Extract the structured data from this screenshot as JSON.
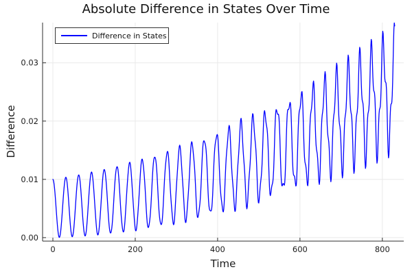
{
  "chart_data": {
    "type": "line",
    "title": "Absolute Difference in States Over Time",
    "xlabel": "Time",
    "ylabel": "Difference",
    "legend": {
      "position": "top-left",
      "entries": [
        {
          "label": "Difference in States",
          "color": "#0000ff"
        }
      ]
    },
    "axes": {
      "xlim": [
        -25,
        852
      ],
      "ylim": [
        -0.0006,
        0.0369
      ],
      "xticks": [
        0,
        200,
        400,
        600,
        800
      ],
      "xtick_labels": [
        "0",
        "200",
        "400",
        "600",
        "800"
      ],
      "yticks": [
        0,
        0.01,
        0.02,
        0.03
      ],
      "ytick_labels": [
        "0.00",
        "0.01",
        "0.02",
        "0.03"
      ],
      "grid": true
    },
    "series": [
      {
        "name": "Difference in States",
        "color": "#0000ff",
        "line_width": 1.3,
        "t_start": 0,
        "t_end": 830,
        "t_step": 1,
        "oscillation_period_time_units": 30,
        "model": {
          "description": "y(t)=max(0, mid + amp*cos(2*pi*(a*t+b*t^2)) + rip*sin(2*pi*t/ripple_period + ripple_phase)); mid=c0+c1*t+c2*t^2; amp=c0+c1*t; rip=c2*t^2",
          "mid": {
            "c0": 0.005,
            "c1": 6.5e-06,
            "c2": 2.2e-08
          },
          "amp": {
            "c0": 0.005,
            "c1": 4.5e-06
          },
          "freq": {
            "a": 0.03175,
            "b": 2.39e-06
          },
          "ripple": {
            "c2": 4.2e-09,
            "period": 9.3,
            "phase": 0.8
          }
        },
        "envelope_readings": {
          "t": [
            0,
            100,
            200,
            300,
            400,
            500,
            600,
            700,
            800,
            830
          ],
          "peak": [
            0.01,
            0.0115,
            0.0134,
            0.016,
            0.02,
            0.0242,
            0.0285,
            0.032,
            0.0355,
            0.0365
          ],
          "trough": [
            0.0,
            0.0005,
            0.0011,
            0.003,
            0.005,
            0.008,
            0.0105,
            0.0128,
            0.0148,
            0.015
          ]
        },
        "start_value": 0.01,
        "max_value": 0.0365
      }
    ]
  },
  "colors": {
    "line": "#0000ff",
    "grid": "#e9e9e9",
    "axis": "#2e2e2e",
    "tick_text": "#1c1c1c",
    "text": "#111111",
    "legend_border": "#333333",
    "background": "#ffffff"
  }
}
